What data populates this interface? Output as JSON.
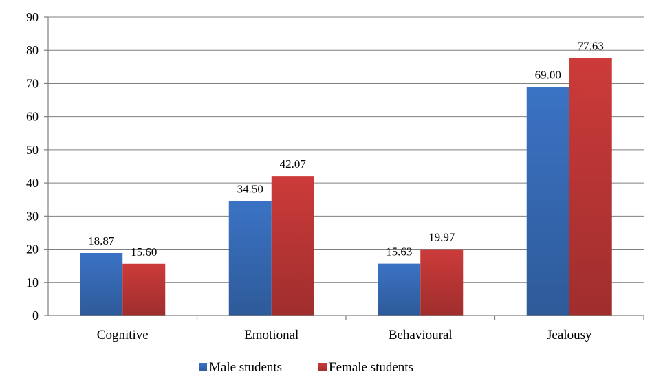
{
  "chart_data": {
    "type": "bar",
    "title": "",
    "xlabel": "",
    "ylabel": "",
    "categories": [
      "Cognitive",
      "Emotional",
      "Behavioural",
      "Jealousy"
    ],
    "series": [
      {
        "name": "Male students",
        "values": [
          18.87,
          34.5,
          15.63,
          69.0
        ],
        "color": "#3b73c4",
        "labels": [
          "18.87",
          "34.50",
          "15.63",
          "69.00"
        ]
      },
      {
        "name": "Female students",
        "values": [
          15.6,
          42.07,
          19.97,
          77.63
        ],
        "color": "#cc3b3a",
        "labels": [
          "15.60",
          "42.07",
          "19.97",
          "77.63"
        ]
      }
    ],
    "ylim": [
      0,
      90
    ],
    "yticks": [
      0,
      10,
      20,
      30,
      40,
      50,
      60,
      70,
      80,
      90
    ],
    "grid": true,
    "legend_position": "bottom"
  }
}
